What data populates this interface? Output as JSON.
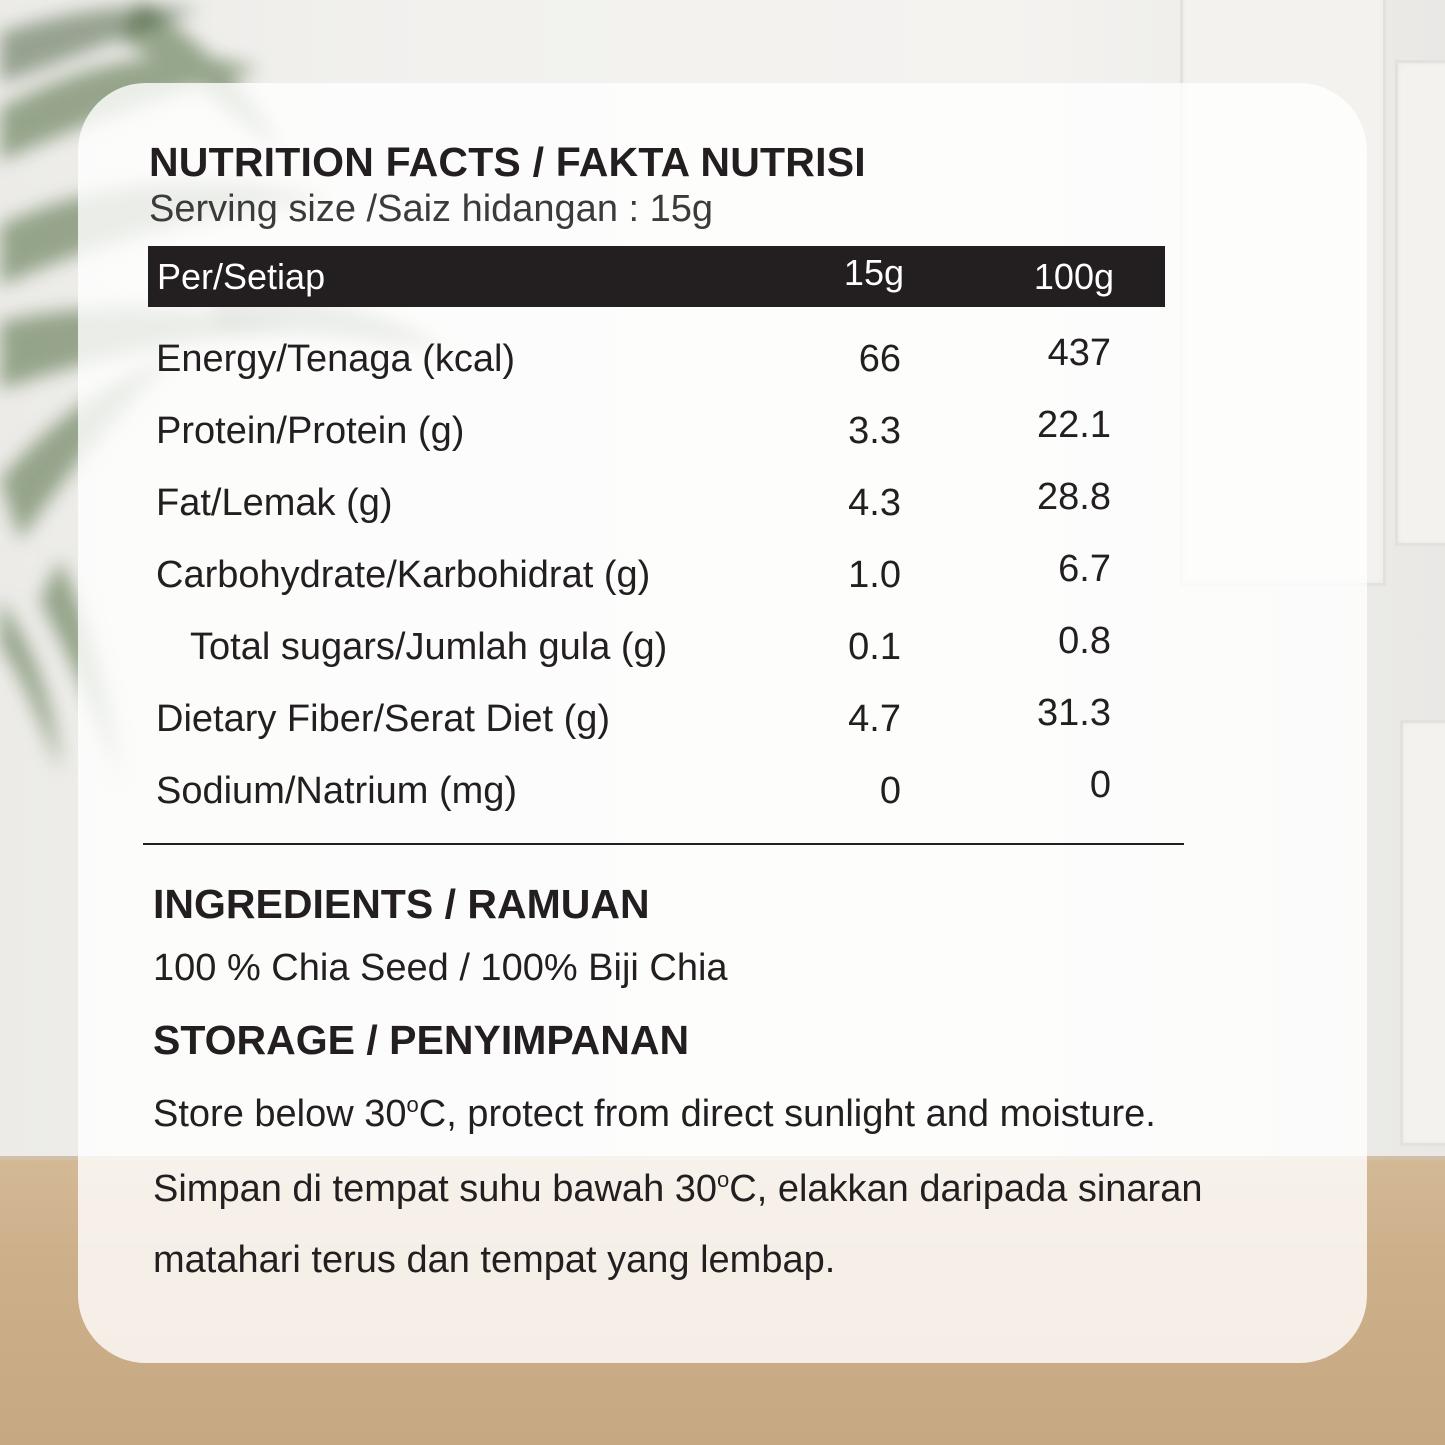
{
  "panel": {
    "title": "NUTRITION FACTS / FAKTA NUTRISI",
    "serving_size": "Serving size /Saiz hidangan : 15g"
  },
  "table": {
    "header": {
      "label": "Per/Setiap",
      "col1": "15g",
      "col2": "100g"
    },
    "rows": [
      {
        "label": "Energy/Tenaga (kcal)",
        "v1": "66",
        "v2": "437"
      },
      {
        "label": "Protein/Protein (g)",
        "v1": "3.3",
        "v2": "22.1"
      },
      {
        "label": "Fat/Lemak (g)",
        "v1": "4.3",
        "v2": "28.8"
      },
      {
        "label": "Carbohydrate/Karbohidrat (g)",
        "v1": "1.0",
        "v2": "6.7"
      },
      {
        "label": "Total sugars/Jumlah gula (g)",
        "v1": "0.1",
        "v2": "0.8"
      },
      {
        "label": "Dietary Fiber/Serat Diet (g)",
        "v1": "4.7",
        "v2": "31.3"
      },
      {
        "label": "Sodium/Natrium (mg)",
        "v1": "0",
        "v2": "0"
      }
    ]
  },
  "ingredients": {
    "heading": "INGREDIENTS / RAMUAN",
    "text": "100 % Chia Seed / 100% Biji Chia"
  },
  "storage": {
    "heading": "STORAGE / PENYIMPANAN",
    "en_before": "Store below 30",
    "degree_mark": "o",
    "en_after": "C, protect from direct sunlight and moisture.",
    "ms_before": "Simpan di tempat suhu bawah 30",
    "ms_after": "C, elakkan daripada sinaran",
    "ms_line2": "matahari terus dan tempat yang lembap."
  }
}
